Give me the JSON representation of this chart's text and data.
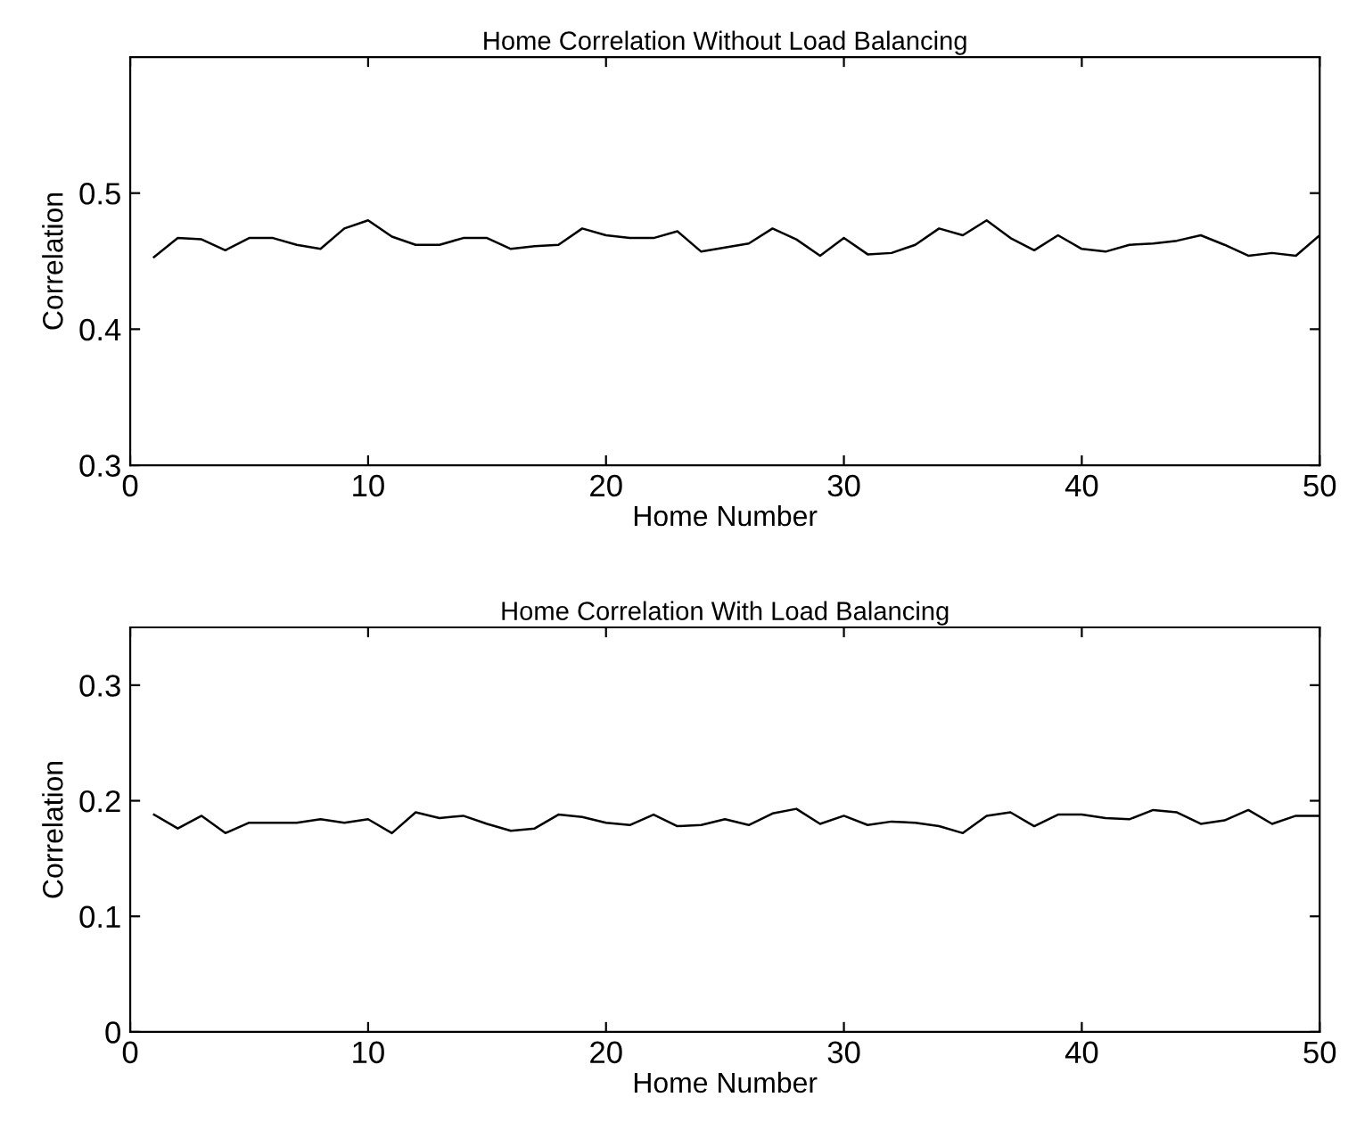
{
  "chart_data": [
    {
      "type": "line",
      "title": "Home Correlation Without Load Balancing",
      "xlabel": "Home Number",
      "ylabel": "Correlation",
      "x": [
        1,
        2,
        3,
        4,
        5,
        6,
        7,
        8,
        9,
        10,
        11,
        12,
        13,
        14,
        15,
        16,
        17,
        18,
        19,
        20,
        21,
        22,
        23,
        24,
        25,
        26,
        27,
        28,
        29,
        30,
        31,
        32,
        33,
        34,
        35,
        36,
        37,
        38,
        39,
        40,
        41,
        42,
        43,
        44,
        45,
        46,
        47,
        48,
        49,
        50
      ],
      "series": [
        {
          "color": "#000000",
          "values": [
            0.453,
            0.467,
            0.466,
            0.458,
            0.467,
            0.467,
            0.462,
            0.459,
            0.474,
            0.48,
            0.468,
            0.462,
            0.462,
            0.467,
            0.467,
            0.459,
            0.461,
            0.462,
            0.474,
            0.469,
            0.467,
            0.467,
            0.472,
            0.457,
            0.46,
            0.463,
            0.474,
            0.466,
            0.454,
            0.467,
            0.455,
            0.456,
            0.462,
            0.474,
            0.469,
            0.48,
            0.467,
            0.458,
            0.469,
            0.459,
            0.457,
            0.462,
            0.463,
            0.465,
            0.469,
            0.462,
            0.454,
            0.456,
            0.454,
            0.469
          ]
        }
      ],
      "xlim": [
        0,
        50
      ],
      "xticks": [
        0,
        10,
        20,
        30,
        40,
        50
      ],
      "ylim": [
        0.3,
        0.6
      ],
      "yticks": [
        0.3,
        0.4,
        0.5
      ],
      "grid": false,
      "marker": "none",
      "line_style": "solid"
    },
    {
      "type": "line",
      "title": "Home Correlation With Load Balancing",
      "xlabel": "Home Number",
      "ylabel": "Correlation",
      "x": [
        1,
        2,
        3,
        4,
        5,
        6,
        7,
        8,
        9,
        10,
        11,
        12,
        13,
        14,
        15,
        16,
        17,
        18,
        19,
        20,
        21,
        22,
        23,
        24,
        25,
        26,
        27,
        28,
        29,
        30,
        31,
        32,
        33,
        34,
        35,
        36,
        37,
        38,
        39,
        40,
        41,
        42,
        43,
        44,
        45,
        46,
        47,
        48,
        49,
        50
      ],
      "series": [
        {
          "color": "#000000",
          "values": [
            0.188,
            0.176,
            0.187,
            0.172,
            0.181,
            0.181,
            0.181,
            0.184,
            0.181,
            0.184,
            0.172,
            0.19,
            0.185,
            0.187,
            0.18,
            0.174,
            0.176,
            0.188,
            0.186,
            0.181,
            0.179,
            0.188,
            0.178,
            0.179,
            0.184,
            0.179,
            0.189,
            0.193,
            0.18,
            0.187,
            0.179,
            0.182,
            0.181,
            0.178,
            0.172,
            0.187,
            0.19,
            0.178,
            0.188,
            0.188,
            0.185,
            0.184,
            0.192,
            0.19,
            0.18,
            0.183,
            0.192,
            0.18,
            0.187,
            0.187
          ]
        }
      ],
      "xlim": [
        0,
        50
      ],
      "xticks": [
        0,
        10,
        20,
        30,
        40,
        50
      ],
      "ylim": [
        0,
        0.35
      ],
      "yticks": [
        0,
        0.1,
        0.2,
        0.3
      ],
      "grid": false,
      "marker": "none",
      "line_style": "solid"
    }
  ]
}
